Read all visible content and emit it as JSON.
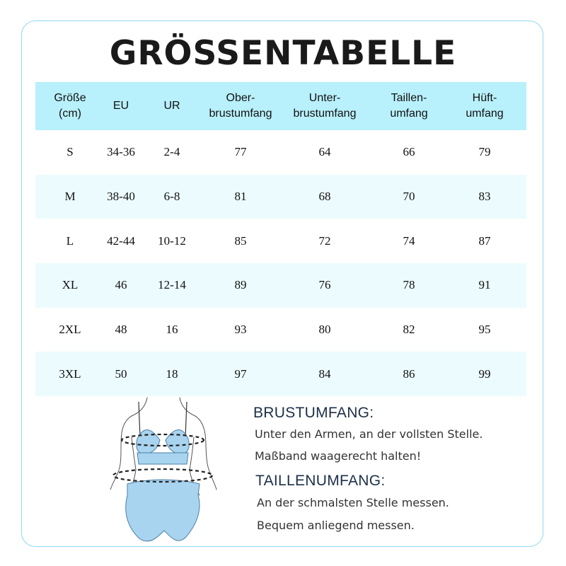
{
  "title": "GRÖSSENTABELLE",
  "table": {
    "headers": [
      "Größe\n(cm)",
      "EU",
      "UR",
      "Ober-\nbrustumfang",
      "Unter-\nbrustumfang",
      "Taillen-\numfang",
      "Hüft-\numfang"
    ],
    "rows": [
      [
        "S",
        "34-36",
        "2-4",
        "77",
        "64",
        "66",
        "79"
      ],
      [
        "M",
        "38-40",
        "6-8",
        "81",
        "68",
        "70",
        "83"
      ],
      [
        "L",
        "42-44",
        "10-12",
        "85",
        "72",
        "74",
        "87"
      ],
      [
        "XL",
        "46",
        "12-14",
        "89",
        "76",
        "78",
        "91"
      ],
      [
        "2XL",
        "48",
        "16",
        "93",
        "80",
        "82",
        "95"
      ],
      [
        "3XL",
        "50",
        "18",
        "97",
        "84",
        "86",
        "99"
      ]
    ]
  },
  "brust": {
    "heading": "BRUSTUMFANG:",
    "line1": "Unter den Armen, an der vollsten Stelle.",
    "line2": "Maßband waagerecht halten!"
  },
  "taille": {
    "heading": "TAILLENUMFANG:",
    "line1": "An der schmalsten Stelle messen.",
    "line2": "Bequem anliegend messen."
  },
  "colors": {
    "header_bg": "#b8f0fb",
    "stripe_bg": "#ecfbfe",
    "border": "#8fd9f2",
    "garment": "#a9d4ef"
  },
  "icons": {
    "figure": "body-measurement-figure"
  }
}
